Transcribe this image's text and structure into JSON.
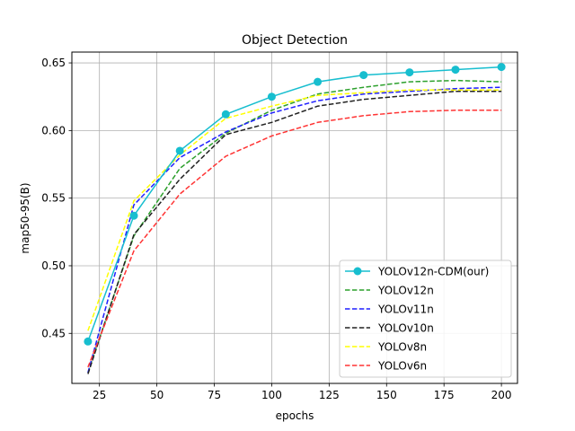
{
  "chart_data": {
    "type": "line",
    "title": "Object Detection",
    "xlabel": "epochs",
    "ylabel": "map50-95(B)",
    "xlim": [
      13,
      207
    ],
    "ylim": [
      0.413,
      0.658
    ],
    "xticks": [
      25,
      50,
      75,
      100,
      125,
      150,
      175,
      200
    ],
    "yticks": [
      0.45,
      0.5,
      0.55,
      0.6,
      0.65
    ],
    "ytick_labels": [
      "0.45",
      "0.50",
      "0.55",
      "0.60",
      "0.65"
    ],
    "grid": true,
    "legend_position": "lower-right",
    "x": [
      20,
      40,
      60,
      80,
      100,
      120,
      140,
      160,
      180,
      200
    ],
    "series": [
      {
        "name": "YOLOv12n-CDM(our)",
        "color": "#17becf",
        "style": "solid-marker",
        "values": [
          0.444,
          0.537,
          0.585,
          0.612,
          0.625,
          0.636,
          0.641,
          0.643,
          0.645,
          0.647
        ]
      },
      {
        "name": "YOLOv12n",
        "color": "#2ca02c",
        "style": "dashed",
        "values": [
          0.421,
          0.522,
          0.572,
          0.598,
          0.615,
          0.627,
          0.632,
          0.636,
          0.637,
          0.636
        ]
      },
      {
        "name": "YOLOv11n",
        "color": "#1f1fff",
        "style": "dashed",
        "values": [
          0.421,
          0.545,
          0.58,
          0.599,
          0.613,
          0.622,
          0.627,
          0.629,
          0.631,
          0.632
        ]
      },
      {
        "name": "YOLOv10n",
        "color": "#222222",
        "style": "dashed",
        "values": [
          0.42,
          0.523,
          0.564,
          0.597,
          0.606,
          0.618,
          0.623,
          0.626,
          0.629,
          0.629
        ]
      },
      {
        "name": "YOLOv8n",
        "color": "#ffff00",
        "style": "dashed",
        "values": [
          0.452,
          0.548,
          0.582,
          0.609,
          0.618,
          0.626,
          0.628,
          0.63,
          0.63,
          0.63
        ]
      },
      {
        "name": "YOLOv6n",
        "color": "#ff3333",
        "style": "dashed",
        "values": [
          0.425,
          0.511,
          0.553,
          0.581,
          0.596,
          0.606,
          0.611,
          0.614,
          0.615,
          0.615
        ]
      }
    ]
  }
}
